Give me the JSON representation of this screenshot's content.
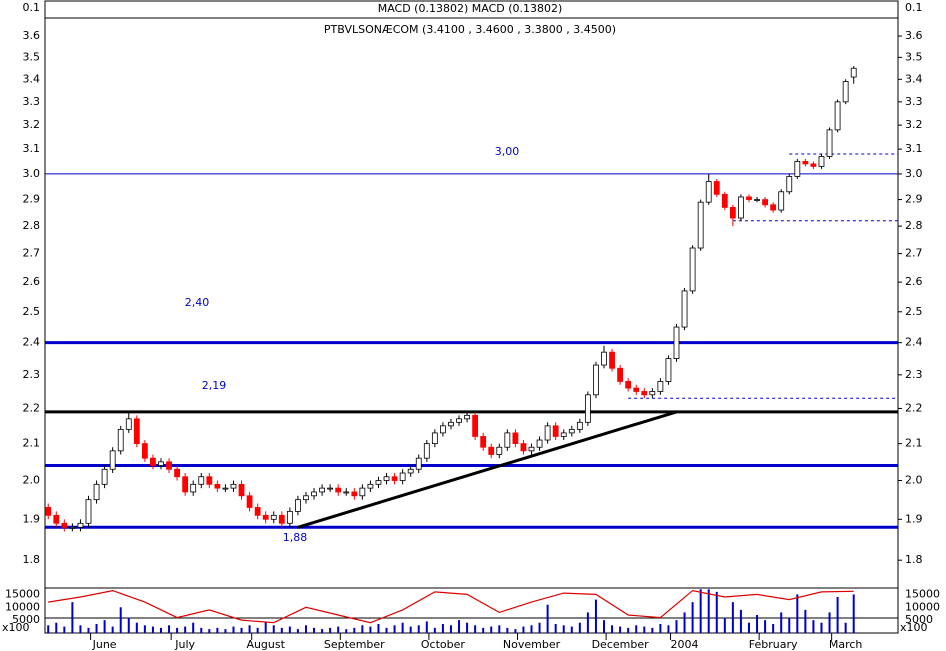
{
  "chart_data": {
    "type": "candlestick",
    "title": "PTBVLSONÆCOM (3.4100 , 3.4600 , 3.3800 , 3.4500)",
    "log_scale": true,
    "ylim": [
      1.735,
      3.687
    ],
    "yticks": [
      1.8,
      1.9,
      {
        "value": 2,
        "label": "2.0"
      },
      2.1,
      2.2,
      2.3,
      2.4,
      2.5,
      2.6,
      2.7,
      2.8,
      2.9,
      {
        "value": 3,
        "label": "3.0"
      },
      3.1,
      3.2,
      3.3,
      3.4,
      3.5,
      3.6
    ],
    "xlim": [
      -0.4,
      105.5
    ],
    "xticks": [
      {
        "value": 7,
        "label": "June"
      },
      {
        "value": 17,
        "label": "July"
      },
      {
        "value": 27,
        "label": "August"
      },
      {
        "value": 38,
        "label": "September"
      },
      {
        "value": 49,
        "label": "October"
      },
      {
        "value": 60,
        "label": "November"
      },
      {
        "value": 71,
        "label": "December"
      },
      {
        "value": 79,
        "label": "2004"
      },
      {
        "value": 90,
        "label": "February"
      },
      {
        "value": 99,
        "label": "March"
      }
    ],
    "up_color": "#ffffff",
    "down_color": "#ff0000",
    "open": [
      1.93,
      1.91,
      1.89,
      1.88,
      1.88,
      1.89,
      1.95,
      1.99,
      2.03,
      2.08,
      2.14,
      2.17,
      2.1,
      2.06,
      2.04,
      2.05,
      2.03,
      2.01,
      1.97,
      1.99,
      2.01,
      1.99,
      1.98,
      1.98,
      1.99,
      1.96,
      1.93,
      1.91,
      1.9,
      1.91,
      1.89,
      1.92,
      1.95,
      1.96,
      1.97,
      1.98,
      1.98,
      1.97,
      1.97,
      1.96,
      1.98,
      1.99,
      2.0,
      2.01,
      2.0,
      2.02,
      2.03,
      2.06,
      2.1,
      2.13,
      2.15,
      2.16,
      2.17,
      2.18,
      2.12,
      2.09,
      2.07,
      2.09,
      2.13,
      2.1,
      2.08,
      2.09,
      2.11,
      2.15,
      2.12,
      2.13,
      2.14,
      2.16,
      2.24,
      2.33,
      2.37,
      2.32,
      2.28,
      2.26,
      2.25,
      2.24,
      2.25,
      2.28,
      2.35,
      2.45,
      2.57,
      2.72,
      2.89,
      2.97,
      2.92,
      2.87,
      2.83,
      2.91,
      2.9,
      2.9,
      2.88,
      2.86,
      2.93,
      2.99,
      3.05,
      3.04,
      3.03,
      3.07,
      3.18,
      3.3,
      3.41
    ],
    "high": [
      1.94,
      1.92,
      1.9,
      1.89,
      1.9,
      1.96,
      2.0,
      2.04,
      2.09,
      2.15,
      2.19,
      2.18,
      2.11,
      2.07,
      2.06,
      2.06,
      2.04,
      2.02,
      2.0,
      2.02,
      2.02,
      2.0,
      1.99,
      2.0,
      2.0,
      1.97,
      1.94,
      1.92,
      1.92,
      1.92,
      1.93,
      1.96,
      1.97,
      1.98,
      1.99,
      1.99,
      1.99,
      1.98,
      1.98,
      1.99,
      2.0,
      2.01,
      2.02,
      2.02,
      2.03,
      2.04,
      2.07,
      2.11,
      2.14,
      2.16,
      2.17,
      2.18,
      2.19,
      2.19,
      2.13,
      2.1,
      2.1,
      2.14,
      2.14,
      2.11,
      2.1,
      2.12,
      2.16,
      2.16,
      2.14,
      2.15,
      2.17,
      2.25,
      2.34,
      2.39,
      2.38,
      2.33,
      2.29,
      2.27,
      2.26,
      2.26,
      2.29,
      2.36,
      2.46,
      2.58,
      2.73,
      2.9,
      3.0,
      2.98,
      2.93,
      2.88,
      2.92,
      2.92,
      2.91,
      2.91,
      2.89,
      2.94,
      3.0,
      3.06,
      3.06,
      3.05,
      3.08,
      3.19,
      3.31,
      3.4,
      3.46
    ],
    "low": [
      1.9,
      1.88,
      1.87,
      1.87,
      1.87,
      1.88,
      1.94,
      1.98,
      2.02,
      2.07,
      2.13,
      2.09,
      2.05,
      2.03,
      2.03,
      2.02,
      2.0,
      1.96,
      1.96,
      1.98,
      1.98,
      1.97,
      1.97,
      1.97,
      1.95,
      1.92,
      1.9,
      1.89,
      1.89,
      1.88,
      1.88,
      1.91,
      1.94,
      1.95,
      1.96,
      1.97,
      1.96,
      1.96,
      1.95,
      1.95,
      1.97,
      1.98,
      1.99,
      1.99,
      1.99,
      2.01,
      2.02,
      2.05,
      2.09,
      2.12,
      2.14,
      2.15,
      2.16,
      2.11,
      2.08,
      2.06,
      2.06,
      2.08,
      2.09,
      2.07,
      2.07,
      2.08,
      2.1,
      2.11,
      2.11,
      2.12,
      2.13,
      2.15,
      2.23,
      2.32,
      2.31,
      2.27,
      2.25,
      2.24,
      2.23,
      2.23,
      2.24,
      2.27,
      2.34,
      2.44,
      2.56,
      2.71,
      2.88,
      2.91,
      2.86,
      2.8,
      2.82,
      2.89,
      2.89,
      2.87,
      2.85,
      2.85,
      2.92,
      2.98,
      3.03,
      3.02,
      3.02,
      3.06,
      3.17,
      3.29,
      3.38
    ],
    "close": [
      1.91,
      1.89,
      1.88,
      1.88,
      1.89,
      1.95,
      1.99,
      2.03,
      2.08,
      2.14,
      2.17,
      2.1,
      2.06,
      2.04,
      2.05,
      2.03,
      2.01,
      1.97,
      1.99,
      2.01,
      1.99,
      1.98,
      1.98,
      1.99,
      1.96,
      1.93,
      1.91,
      1.9,
      1.91,
      1.89,
      1.92,
      1.95,
      1.96,
      1.97,
      1.98,
      1.98,
      1.97,
      1.97,
      1.96,
      1.98,
      1.99,
      2.0,
      2.01,
      2.0,
      2.02,
      2.03,
      2.06,
      2.1,
      2.13,
      2.15,
      2.16,
      2.17,
      2.18,
      2.12,
      2.09,
      2.07,
      2.09,
      2.13,
      2.1,
      2.08,
      2.09,
      2.11,
      2.15,
      2.12,
      2.13,
      2.14,
      2.16,
      2.24,
      2.33,
      2.37,
      2.32,
      2.28,
      2.26,
      2.25,
      2.24,
      2.25,
      2.28,
      2.35,
      2.45,
      2.57,
      2.72,
      2.89,
      2.97,
      2.92,
      2.87,
      2.83,
      2.91,
      2.9,
      2.9,
      2.88,
      2.86,
      2.93,
      2.99,
      3.05,
      3.04,
      3.03,
      3.07,
      3.18,
      3.3,
      3.39,
      3.45
    ],
    "levels": [
      {
        "value": 3.0,
        "color": "#0000cc",
        "style": "thin"
      },
      {
        "value": 2.4,
        "color": "#0000cc",
        "style": "thick"
      },
      {
        "value": 2.04,
        "color": "#0000cc",
        "style": "thick"
      },
      {
        "value": 1.88,
        "color": "#0000cc",
        "style": "thick"
      },
      {
        "value": 2.19,
        "color": "#000000",
        "style": "thick"
      }
    ],
    "dashed_levels": [
      {
        "value": 3.08,
        "from": 92
      },
      {
        "value": 2.82,
        "from": 85
      },
      {
        "value": 2.23,
        "from": 72
      }
    ],
    "trendline": {
      "x": [
        31,
        78
      ],
      "y": [
        1.88,
        2.19
      ]
    },
    "annotations": [
      "3,00",
      "2,40",
      "2,19",
      "1,88"
    ],
    "macd": {
      "title": "MACD (0.13802)  MACD (0.13802)",
      "ylim": [
        -0.05,
        0.2
      ],
      "yticks": [
        0.1
      ]
    },
    "volume": {
      "unit": "x100",
      "ylim": [
        0,
        17500
      ],
      "yticks": [
        15000,
        10000,
        5000
      ],
      "color": "#0000cc",
      "values": [
        3000,
        4000,
        2500,
        12000,
        3000,
        2000,
        3500,
        5000,
        2500,
        10000,
        6000,
        4000,
        3000,
        2500,
        2000,
        3000,
        2000,
        2500,
        4000,
        2000,
        1500,
        2000,
        1500,
        2500,
        2000,
        3000,
        2000,
        4500,
        3000,
        2000,
        2500,
        1500,
        3000,
        2000,
        1500,
        2000,
        2500,
        1500,
        2000,
        3000,
        2500,
        3500,
        2000,
        3000,
        4000,
        2500,
        3000,
        4500,
        2000,
        3500,
        3000,
        5000,
        4000,
        3000,
        2000,
        2500,
        3000,
        2000,
        1500,
        2500,
        3000,
        4000,
        11000,
        3500,
        3000,
        2500,
        4000,
        8000,
        13000,
        5000,
        3000,
        2500,
        2000,
        3000,
        2500,
        2000,
        3500,
        3000,
        5000,
        8000,
        12000,
        17000,
        17000,
        16000,
        6000,
        12000,
        9000,
        4000,
        7000,
        5000,
        3500,
        8000,
        6000,
        15000,
        9000,
        5000,
        4000,
        8000,
        14000,
        4000,
        15000
      ]
    },
    "stochastic": {
      "color": "#dd0000",
      "x": [
        0,
        4,
        8,
        12,
        16,
        20,
        24,
        28,
        32,
        36,
        40,
        44,
        48,
        52,
        56,
        60,
        64,
        68,
        72,
        76,
        80,
        84,
        88,
        92,
        96,
        100
      ],
      "values": [
        12000,
        14000,
        16500,
        12000,
        6000,
        9000,
        5000,
        4000,
        10000,
        7000,
        4000,
        9000,
        16000,
        15000,
        8000,
        12000,
        15500,
        15000,
        7000,
        6000,
        16500,
        14000,
        15000,
        13000,
        16000,
        16200
      ]
    }
  }
}
